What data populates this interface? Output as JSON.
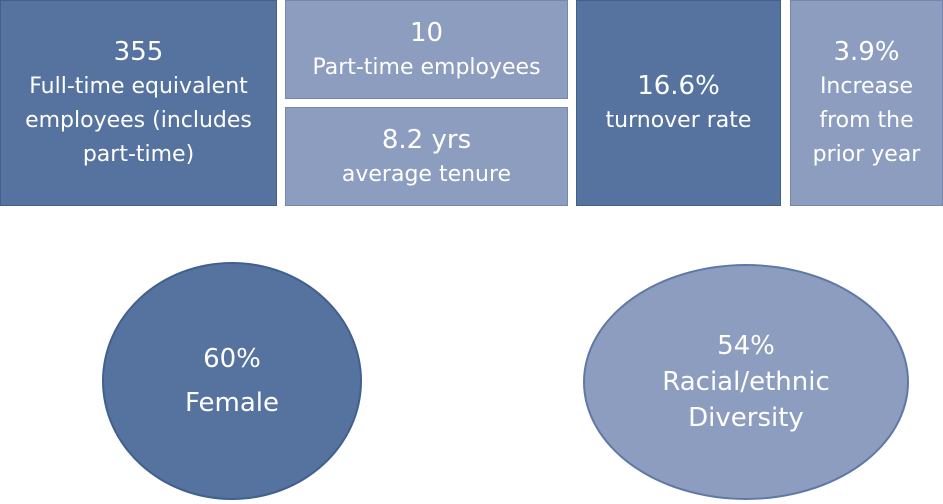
{
  "tiles": [
    {
      "value": "355",
      "lines": [
        "Full-time equivalent",
        "employees (includes",
        "part-time)"
      ]
    },
    {
      "value": "10",
      "lines": [
        "Part-time employees"
      ]
    },
    {
      "value": "8.2 yrs",
      "lines": [
        "average tenure"
      ]
    },
    {
      "value": "16.6%",
      "lines": [
        "turnover rate"
      ]
    },
    {
      "value": "3.9%",
      "lines": [
        "Increase",
        "from the",
        "prior year"
      ]
    }
  ],
  "ellipses": [
    {
      "value": "60%",
      "lines": [
        "Female"
      ]
    },
    {
      "value": "54%",
      "lines": [
        "Racial/ethnic",
        "Diversity"
      ]
    }
  ]
}
